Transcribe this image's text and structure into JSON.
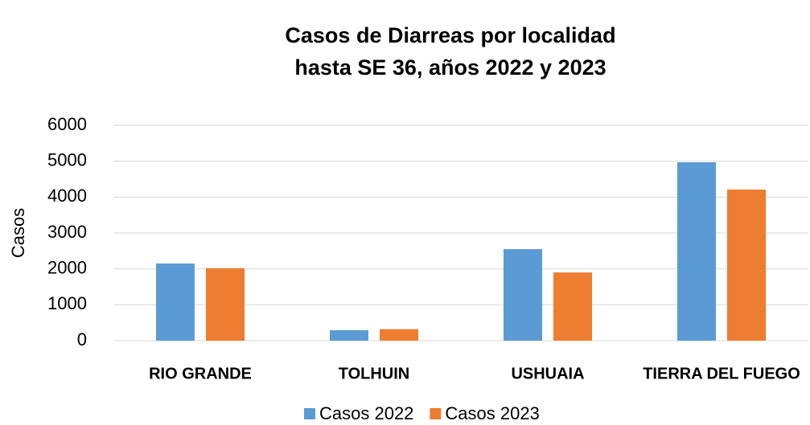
{
  "chart_data": {
    "type": "bar",
    "title": [
      "Casos de Diarreas por localidad",
      "hasta SE 36, años 2022 y 2023"
    ],
    "y_label": "Casos",
    "categories": [
      "RIO GRANDE",
      "TOLHUIN",
      "USHUAIA",
      "TIERRA DEL FUEGO"
    ],
    "series": [
      {
        "name": "Casos 2022",
        "color": "#5b9bd5",
        "values": [
          2150,
          290,
          2550,
          4970
        ]
      },
      {
        "name": "Casos 2023",
        "color": "#ed7d31",
        "values": [
          2020,
          320,
          1900,
          4210
        ]
      }
    ],
    "ylim": [
      0,
      6000
    ],
    "yticks": [
      0,
      1000,
      2000,
      3000,
      4000,
      5000,
      6000
    ],
    "grid": true,
    "legend": "bottom"
  }
}
